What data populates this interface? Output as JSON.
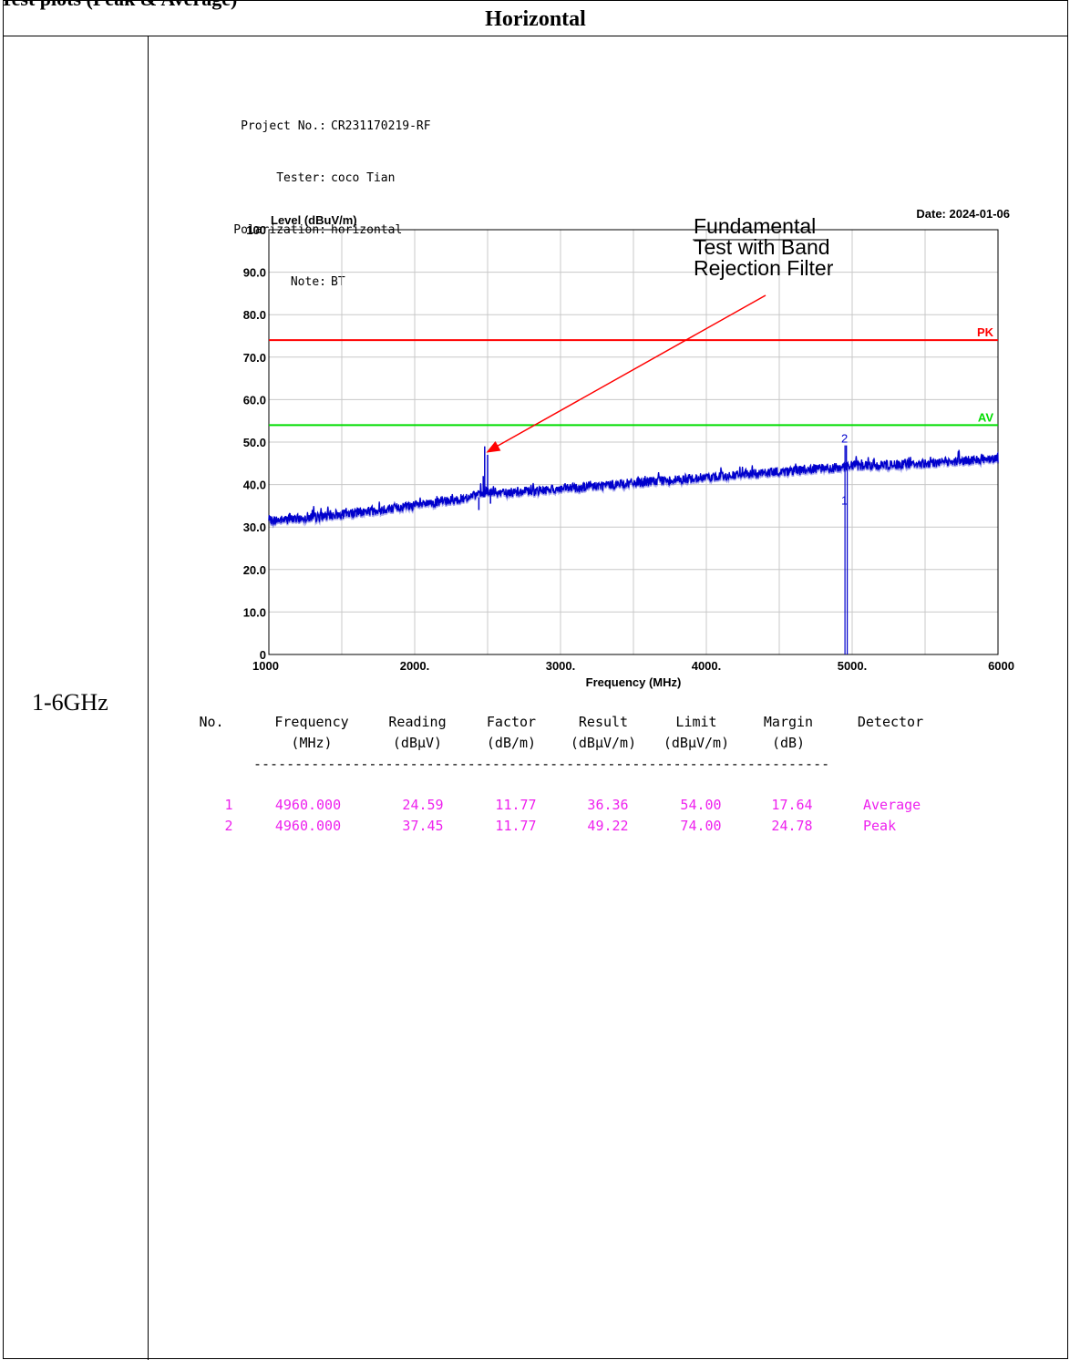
{
  "document": {
    "top_cut_text": "Test plots (Peak & Average)",
    "header": "Horizontal",
    "row_label": "1-6GHz"
  },
  "info": {
    "project_label": "Project No.:",
    "project_value": "CR231170219-RF",
    "tester_label": "Tester:",
    "tester_value": "coco Tian",
    "polarization_label": "Polarization:",
    "polarization_value": "horizontal",
    "note_label": "Note:",
    "note_value": "BT"
  },
  "chart_data": {
    "type": "line",
    "ylabel": "Level (dBuV/m)",
    "xlabel": "Frequency (MHz)",
    "date_text": "Date: 2024-01-06",
    "xlim": [
      1000,
      6000
    ],
    "ylim": [
      0,
      100
    ],
    "x_ticks": [
      1000,
      2000,
      3000,
      4000,
      5000,
      6000
    ],
    "x_tick_labels": [
      "1000",
      "2000.",
      "3000.",
      "4000.",
      "5000.",
      "6000"
    ],
    "y_ticks": [
      0,
      10,
      20,
      30,
      40,
      50,
      60,
      70,
      80,
      90,
      100
    ],
    "y_tick_labels": [
      "0",
      "10.0",
      "20.0",
      "30.0",
      "40.0",
      "50.0",
      "60.0",
      "70.0",
      "80.0",
      "90.0",
      "100"
    ],
    "grid": true,
    "limit_lines": [
      {
        "name": "PK",
        "value": 74,
        "color": "#ff0000"
      },
      {
        "name": "AV",
        "value": 54,
        "color": "#00dd00"
      }
    ],
    "trace_color": "#0000cc",
    "trace_anchors": [
      [
        1000,
        31.5
      ],
      [
        1200,
        32.0
      ],
      [
        1500,
        33.0
      ],
      [
        1800,
        34.3
      ],
      [
        2100,
        35.5
      ],
      [
        2300,
        36.5
      ],
      [
        2400,
        37.3
      ],
      [
        2500,
        38.2
      ],
      [
        2600,
        38.0
      ],
      [
        3000,
        39.0
      ],
      [
        3500,
        40.4
      ],
      [
        4000,
        41.7
      ],
      [
        4500,
        43.0
      ],
      [
        4900,
        44.0
      ],
      [
        5000,
        44.5
      ],
      [
        5200,
        44.5
      ],
      [
        5500,
        45.0
      ],
      [
        6000,
        46.3
      ]
    ],
    "spikes": [
      {
        "x": 2440,
        "from": 37,
        "to": 34.0
      },
      {
        "x": 2470,
        "from": 37,
        "to": 42.0
      },
      {
        "x": 2480,
        "from": 37,
        "to": 49.0
      },
      {
        "x": 2500,
        "from": 38,
        "to": 47.0
      },
      {
        "x": 2520,
        "from": 38,
        "to": 35.5
      },
      {
        "x": 4960,
        "from": 44,
        "to": 49.22
      }
    ],
    "markers": [
      {
        "label": "1",
        "x": 4960,
        "y": 36.36
      },
      {
        "label": "2",
        "x": 4960,
        "y": 49.22
      }
    ],
    "annotation": {
      "lines": [
        "Fundamental",
        "Test with Band",
        "Rejection Filter"
      ],
      "arrow_to": [
        2490,
        47.5
      ]
    }
  },
  "results_table": {
    "headers": [
      {
        "line1": "No.",
        "line2": ""
      },
      {
        "line1": "Frequency",
        "line2": "(MHz)"
      },
      {
        "line1": "Reading",
        "line2": "(dBμV)"
      },
      {
        "line1": "Factor",
        "line2": "(dB/m)"
      },
      {
        "line1": "Result",
        "line2": "(dBμV/m)"
      },
      {
        "line1": "Limit",
        "line2": "(dBμV/m)"
      },
      {
        "line1": "Margin",
        "line2": "(dB)"
      },
      {
        "line1": "Detector",
        "line2": ""
      }
    ],
    "separator": "----------------------------------------------------------------------",
    "rows": [
      [
        "1",
        "4960.000",
        "24.59",
        "11.77",
        "36.36",
        "54.00",
        "17.64",
        "Average"
      ],
      [
        "2",
        "4960.000",
        "37.45",
        "11.77",
        "49.22",
        "74.00",
        "24.78",
        "Peak"
      ]
    ]
  }
}
